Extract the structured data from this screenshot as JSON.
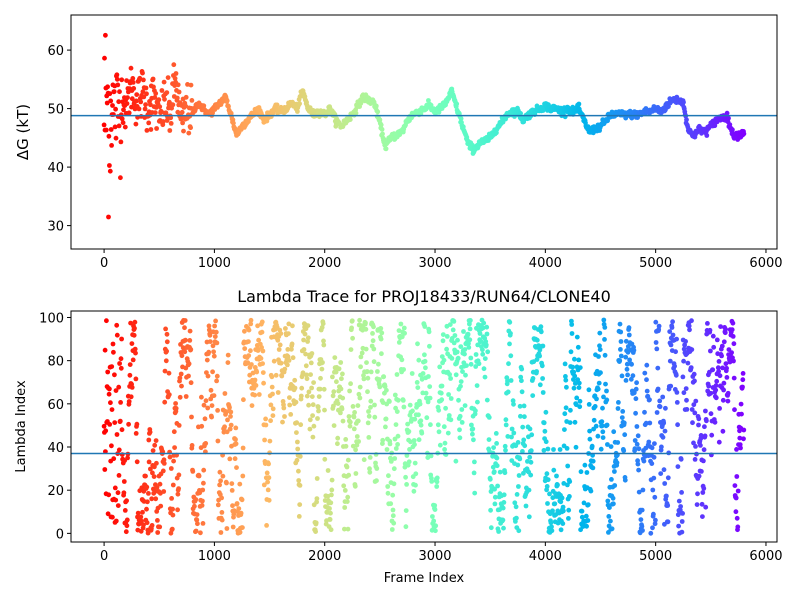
{
  "chart_data": [
    {
      "type": "scatter",
      "title": "",
      "xlabel": "",
      "ylabel": "ΔG (kT)",
      "xlim": [
        -300,
        6100
      ],
      "ylim": [
        26,
        66
      ],
      "xticks": [
        0,
        1000,
        2000,
        3000,
        4000,
        5000,
        6000
      ],
      "yticks": [
        30,
        40,
        50,
        60
      ],
      "xtick_labels": [
        "0",
        "1000",
        "2000",
        "3000",
        "4000",
        "5000",
        "6000"
      ],
      "ytick_labels": [
        "30",
        "40",
        "50",
        "60"
      ],
      "hline": 48.8,
      "colormap": "rainbow (reversed over frame index: red at 0, violet at end)",
      "n_frames": 5800,
      "trace_x": [
        0,
        50,
        100,
        150,
        200,
        250,
        300,
        350,
        400,
        450,
        500,
        550,
        600,
        650,
        700,
        750,
        800,
        850,
        900,
        950,
        1000,
        1050,
        1100,
        1150,
        1200,
        1250,
        1300,
        1350,
        1400,
        1450,
        1500,
        1550,
        1600,
        1650,
        1700,
        1750,
        1800,
        1850,
        1900,
        1950,
        2000,
        2050,
        2100,
        2150,
        2200,
        2250,
        2300,
        2350,
        2400,
        2450,
        2500,
        2550,
        2600,
        2650,
        2700,
        2750,
        2800,
        2850,
        2900,
        2950,
        3000,
        3050,
        3100,
        3150,
        3200,
        3250,
        3300,
        3350,
        3400,
        3450,
        3500,
        3550,
        3600,
        3650,
        3700,
        3750,
        3800,
        3850,
        3900,
        3950,
        4000,
        4050,
        4100,
        4150,
        4200,
        4250,
        4300,
        4350,
        4400,
        4450,
        4500,
        4550,
        4600,
        4650,
        4700,
        4750,
        4800,
        4850,
        4900,
        4950,
        5000,
        5050,
        5100,
        5150,
        5200,
        5250,
        5300,
        5350,
        5400,
        5450,
        5500,
        5550,
        5600,
        5650,
        5700,
        5750,
        5800
      ],
      "trace_y": [
        50,
        52,
        49,
        53,
        50,
        54,
        51,
        53,
        50,
        52,
        48,
        51,
        49,
        55,
        47,
        50,
        49,
        51,
        50,
        49,
        50,
        51,
        52,
        49,
        45.5,
        47,
        48,
        49,
        50,
        48,
        49,
        50,
        49.5,
        50,
        51,
        50,
        53,
        50,
        49,
        49.5,
        49,
        50,
        48,
        47,
        48,
        49,
        50.5,
        52,
        51.5,
        51,
        47.5,
        43.5,
        45,
        45.5,
        46,
        48,
        49,
        49.5,
        50,
        50.5,
        49.5,
        50,
        51,
        53,
        50,
        47,
        44,
        43,
        44,
        44.5,
        45,
        46.5,
        47.5,
        49,
        49.5,
        49.5,
        48,
        49,
        49.5,
        50,
        50.5,
        50,
        50,
        49.5,
        50,
        49.5,
        50,
        48,
        46,
        46.5,
        47,
        48,
        49,
        49,
        49,
        49,
        49,
        49,
        49.5,
        49.5,
        50,
        49.5,
        50.5,
        51.5,
        51.5,
        51,
        46,
        45.5,
        46.5,
        46,
        47,
        48,
        48.5,
        48.5,
        45.5,
        45.5,
        46
      ]
    },
    {
      "type": "scatter",
      "title": "Lambda Trace for PROJ18433/RUN64/CLONE40",
      "xlabel": "Frame Index",
      "ylabel": "Lambda Index",
      "xlim": [
        -300,
        6100
      ],
      "ylim": [
        -4,
        103
      ],
      "xticks": [
        0,
        1000,
        2000,
        3000,
        4000,
        5000,
        6000
      ],
      "yticks": [
        0,
        20,
        40,
        60,
        80,
        100
      ],
      "xtick_labels": [
        "0",
        "1000",
        "2000",
        "3000",
        "4000",
        "5000",
        "6000"
      ],
      "ytick_labels": [
        "0",
        "20",
        "40",
        "60",
        "80",
        "100"
      ],
      "hline": 37,
      "colormap": "rainbow (reversed over frame index: red at 0, violet at end)",
      "n_frames": 5800,
      "lambda_range": [
        0,
        99
      ]
    }
  ],
  "colors": {
    "hline": "#1f77b4",
    "axes": "#000000",
    "background": "#ffffff"
  }
}
